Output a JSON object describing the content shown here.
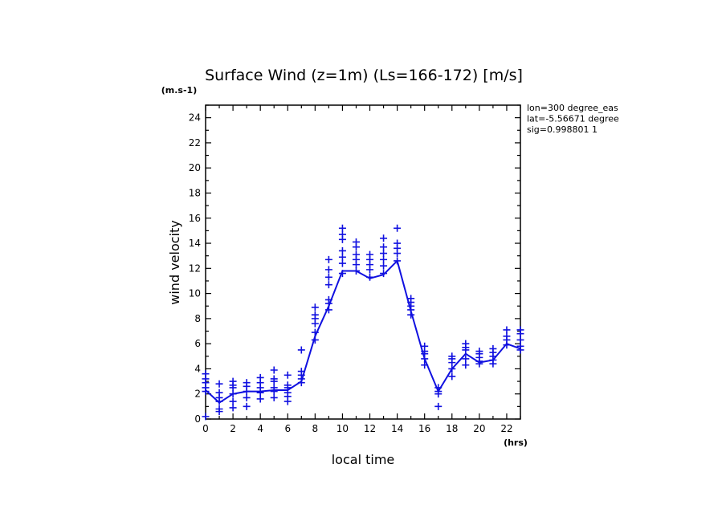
{
  "chart_data": {
    "type": "line",
    "title": "Surface Wind (z=1m) (Ls=166-172) [m/s]",
    "xlabel": "local time",
    "ylabel": "wind velocity",
    "x_unit": "(hrs)",
    "y_unit": "(m.s-1)",
    "xlim": [
      0,
      23
    ],
    "ylim": [
      0,
      25
    ],
    "x_ticks": [
      "0",
      "2",
      "4",
      "6",
      "8",
      "10",
      "12",
      "14",
      "16",
      "18",
      "20",
      "22"
    ],
    "y_ticks": [
      "0",
      "2",
      "4",
      "6",
      "8",
      "10",
      "12",
      "14",
      "16",
      "18",
      "20",
      "22",
      "24"
    ],
    "annotations": [
      "lon=300 degree_eas",
      "lat=-5.56671 degree",
      "sig=0.998801 1"
    ],
    "color": "#1010e0",
    "grid": false,
    "series": [
      {
        "kind": "line",
        "x": [
          0,
          1,
          2,
          3,
          4,
          5,
          6,
          7,
          8,
          9,
          10,
          11,
          12,
          13,
          14,
          15,
          16,
          17,
          18,
          19,
          20,
          21,
          22,
          23
        ],
        "y": [
          2.3,
          1.3,
          2.0,
          2.2,
          2.2,
          2.3,
          2.3,
          3.0,
          6.6,
          9.0,
          11.8,
          11.8,
          11.2,
          11.5,
          12.6,
          8.6,
          4.8,
          2.2,
          4.0,
          5.2,
          4.5,
          4.7,
          6.0,
          5.6
        ]
      },
      {
        "kind": "scatter",
        "marker": "+",
        "points": [
          [
            0,
            0.2
          ],
          [
            0,
            2.2
          ],
          [
            0,
            2.5
          ],
          [
            0,
            2.9
          ],
          [
            0,
            3.2
          ],
          [
            0,
            3.6
          ],
          [
            1,
            0.6
          ],
          [
            1,
            0.8
          ],
          [
            1,
            1.4
          ],
          [
            1,
            1.7
          ],
          [
            1,
            2.1
          ],
          [
            1,
            2.8
          ],
          [
            2,
            0.9
          ],
          [
            2,
            1.4
          ],
          [
            2,
            2.0
          ],
          [
            2,
            2.5
          ],
          [
            2,
            2.7
          ],
          [
            2,
            3.0
          ],
          [
            3,
            1.0
          ],
          [
            3,
            1.7
          ],
          [
            3,
            2.2
          ],
          [
            3,
            2.6
          ],
          [
            3,
            2.9
          ],
          [
            4,
            1.6
          ],
          [
            4,
            2.1
          ],
          [
            4,
            2.5
          ],
          [
            4,
            2.9
          ],
          [
            4,
            3.3
          ],
          [
            5,
            1.7
          ],
          [
            5,
            2.2
          ],
          [
            5,
            2.5
          ],
          [
            5,
            3.0
          ],
          [
            5,
            3.2
          ],
          [
            5,
            3.9
          ],
          [
            6,
            1.4
          ],
          [
            6,
            1.8
          ],
          [
            6,
            2.1
          ],
          [
            6,
            2.5
          ],
          [
            6,
            2.7
          ],
          [
            6,
            3.5
          ],
          [
            7,
            2.9
          ],
          [
            7,
            3.2
          ],
          [
            7,
            3.5
          ],
          [
            7,
            3.8
          ],
          [
            7,
            5.5
          ],
          [
            8,
            6.3
          ],
          [
            8,
            6.9
          ],
          [
            8,
            7.6
          ],
          [
            8,
            8.0
          ],
          [
            8,
            8.3
          ],
          [
            8,
            8.9
          ],
          [
            9,
            8.7
          ],
          [
            9,
            9.2
          ],
          [
            9,
            9.5
          ],
          [
            9,
            10.7
          ],
          [
            9,
            11.3
          ],
          [
            9,
            11.9
          ],
          [
            9,
            12.7
          ],
          [
            10,
            11.6
          ],
          [
            10,
            12.4
          ],
          [
            10,
            12.9
          ],
          [
            10,
            13.4
          ],
          [
            10,
            14.3
          ],
          [
            10,
            14.7
          ],
          [
            10,
            15.2
          ],
          [
            11,
            11.8
          ],
          [
            11,
            12.3
          ],
          [
            11,
            12.7
          ],
          [
            11,
            13.1
          ],
          [
            11,
            13.7
          ],
          [
            11,
            14.1
          ],
          [
            12,
            11.3
          ],
          [
            12,
            11.9
          ],
          [
            12,
            12.3
          ],
          [
            12,
            12.7
          ],
          [
            12,
            13.1
          ],
          [
            13,
            11.6
          ],
          [
            13,
            12.2
          ],
          [
            13,
            12.7
          ],
          [
            13,
            13.2
          ],
          [
            13,
            13.7
          ],
          [
            13,
            14.4
          ],
          [
            14,
            12.6
          ],
          [
            14,
            13.2
          ],
          [
            14,
            13.6
          ],
          [
            14,
            14.0
          ],
          [
            14,
            15.2
          ],
          [
            15,
            8.3
          ],
          [
            15,
            8.7
          ],
          [
            15,
            9.0
          ],
          [
            15,
            9.3
          ],
          [
            15,
            9.6
          ],
          [
            16,
            4.3
          ],
          [
            16,
            4.8
          ],
          [
            16,
            5.2
          ],
          [
            16,
            5.4
          ],
          [
            16,
            5.8
          ],
          [
            17,
            1.0
          ],
          [
            17,
            2.0
          ],
          [
            17,
            2.2
          ],
          [
            17,
            2.5
          ],
          [
            18,
            3.4
          ],
          [
            18,
            4.0
          ],
          [
            18,
            4.5
          ],
          [
            18,
            4.8
          ],
          [
            18,
            5.0
          ],
          [
            19,
            4.3
          ],
          [
            19,
            4.8
          ],
          [
            19,
            5.5
          ],
          [
            19,
            5.7
          ],
          [
            19,
            6.0
          ],
          [
            20,
            4.4
          ],
          [
            20,
            4.6
          ],
          [
            20,
            4.9
          ],
          [
            20,
            5.2
          ],
          [
            20,
            5.4
          ],
          [
            21,
            4.4
          ],
          [
            21,
            4.7
          ],
          [
            21,
            5.0
          ],
          [
            21,
            5.3
          ],
          [
            21,
            5.6
          ],
          [
            22,
            5.9
          ],
          [
            22,
            6.3
          ],
          [
            22,
            6.6
          ],
          [
            22,
            7.1
          ],
          [
            23,
            5.5
          ],
          [
            23,
            5.8
          ],
          [
            23,
            6.3
          ],
          [
            23,
            6.8
          ],
          [
            23,
            7.1
          ]
        ]
      }
    ]
  }
}
